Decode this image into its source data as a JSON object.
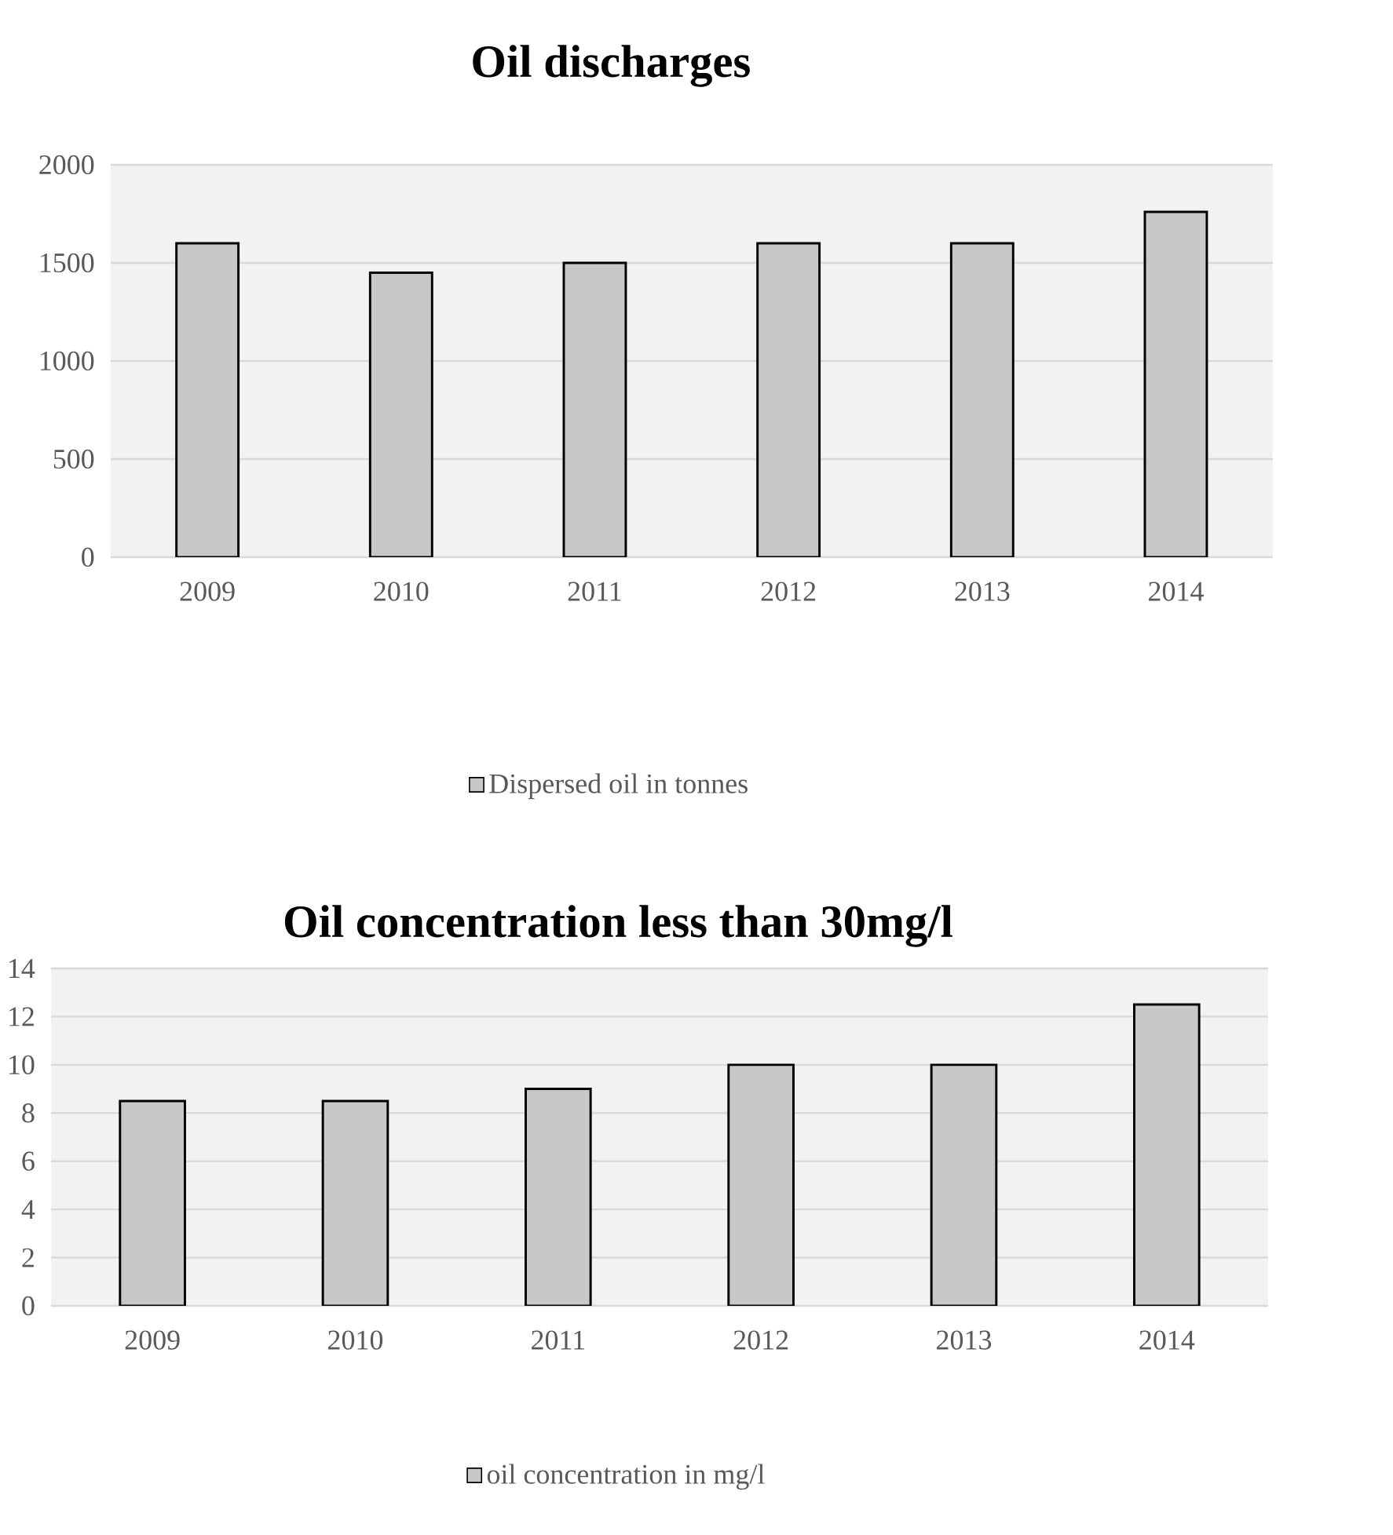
{
  "chart_data": [
    {
      "type": "bar",
      "title": "Oil discharges",
      "categories": [
        "2009",
        "2010",
        "2011",
        "2012",
        "2013",
        "2014"
      ],
      "series": [
        {
          "name": "Dispersed oil in tonnes",
          "color": "#c8c8c8",
          "values": [
            1600,
            1450,
            1500,
            1600,
            1600,
            1760
          ]
        }
      ],
      "ylim": [
        0,
        2000
      ],
      "yticks": [
        0,
        500,
        1000,
        1500,
        2000
      ],
      "grid": "y",
      "legend": "bottom"
    },
    {
      "type": "bar",
      "title": "Oil concentration less than 30mg/l",
      "categories": [
        "2009",
        "2010",
        "2011",
        "2012",
        "2013",
        "2014"
      ],
      "series": [
        {
          "name": "oil concentration in mg/l",
          "color": "#c8c8c8",
          "values": [
            8.5,
            8.5,
            9,
            10,
            10,
            12.5
          ]
        }
      ],
      "ylim": [
        0,
        14
      ],
      "yticks": [
        0,
        2,
        4,
        6,
        8,
        10,
        12,
        14
      ],
      "grid": "y",
      "legend": "bottom"
    }
  ]
}
